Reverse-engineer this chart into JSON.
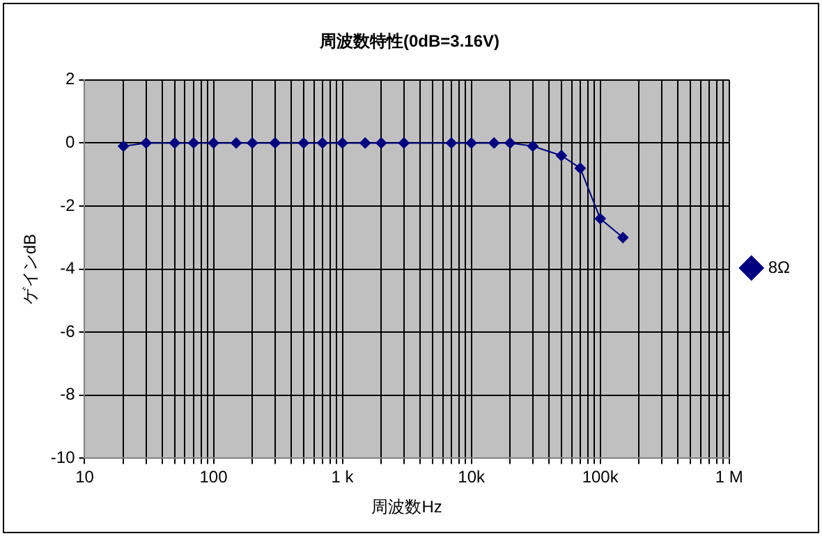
{
  "chart_data": {
    "type": "line",
    "title": "周波数特性(0dB=3.16V)",
    "xlabel": "周波数Hz",
    "ylabel": "ゲインdB",
    "log": "x",
    "x": [
      20,
      30,
      50,
      70,
      100,
      150,
      200,
      300,
      500,
      700,
      1000,
      1500,
      2000,
      3000,
      7000,
      10000,
      15000,
      20000,
      30000,
      50000,
      70000,
      100000,
      150000
    ],
    "series": [
      {
        "name": "8Ω",
        "color": "#000080",
        "values": [
          -0.1,
          0,
          0,
          0,
          0,
          0,
          0,
          0,
          0,
          0,
          0,
          0,
          0,
          0,
          0,
          0,
          0,
          0,
          -0.1,
          -0.4,
          -0.8,
          -2.4,
          -3.0
        ]
      }
    ],
    "xlim": [
      10,
      1000000
    ],
    "xticks": [
      10,
      {
        "value": 20,
        "label": null
      },
      {
        "value": 30,
        "label": null
      },
      {
        "value": 40,
        "label": null
      },
      {
        "value": 50,
        "label": null
      },
      {
        "value": 60,
        "label": null
      },
      {
        "value": 70,
        "label": null
      },
      {
        "value": 80,
        "label": null
      },
      {
        "value": 90,
        "label": null
      },
      {
        "value": 100,
        "label": "100"
      },
      {
        "value": 200,
        "label": null
      },
      {
        "value": 300,
        "label": null
      },
      {
        "value": 400,
        "label": null
      },
      {
        "value": 500,
        "label": null
      },
      {
        "value": 600,
        "label": null
      },
      {
        "value": 700,
        "label": null
      },
      {
        "value": 800,
        "label": null
      },
      {
        "value": 900,
        "label": null
      },
      {
        "value": 1000,
        "label": "1 k"
      },
      {
        "value": 2000,
        "label": null
      },
      {
        "value": 3000,
        "label": null
      },
      {
        "value": 4000,
        "label": null
      },
      {
        "value": 5000,
        "label": null
      },
      {
        "value": 6000,
        "label": null
      },
      {
        "value": 7000,
        "label": null
      },
      {
        "value": 8000,
        "label": null
      },
      {
        "value": 9000,
        "label": null
      },
      {
        "value": 10000,
        "label": "10k"
      },
      {
        "value": 20000,
        "label": null
      },
      {
        "value": 30000,
        "label": null
      },
      {
        "value": 40000,
        "label": null
      },
      {
        "value": 50000,
        "label": null
      },
      {
        "value": 60000,
        "label": null
      },
      {
        "value": 70000,
        "label": null
      },
      {
        "value": 80000,
        "label": null
      },
      {
        "value": 90000,
        "label": null
      },
      {
        "value": 100000,
        "label": "100k"
      },
      {
        "value": 200000,
        "label": null
      },
      {
        "value": 300000,
        "label": null
      },
      {
        "value": 400000,
        "label": null
      },
      {
        "value": 500000,
        "label": null
      },
      {
        "value": 600000,
        "label": null
      },
      {
        "value": 700000,
        "label": null
      },
      {
        "value": 800000,
        "label": null
      },
      {
        "value": 900000,
        "label": null
      },
      {
        "value": 1000000,
        "label": "1 M"
      }
    ],
    "ylim": [
      -10,
      2
    ],
    "yticks": [
      -10,
      -8,
      -6,
      -4,
      -2,
      0,
      2
    ],
    "grid": true,
    "legend": "right",
    "marker": "diamond",
    "line_style": "solid"
  }
}
